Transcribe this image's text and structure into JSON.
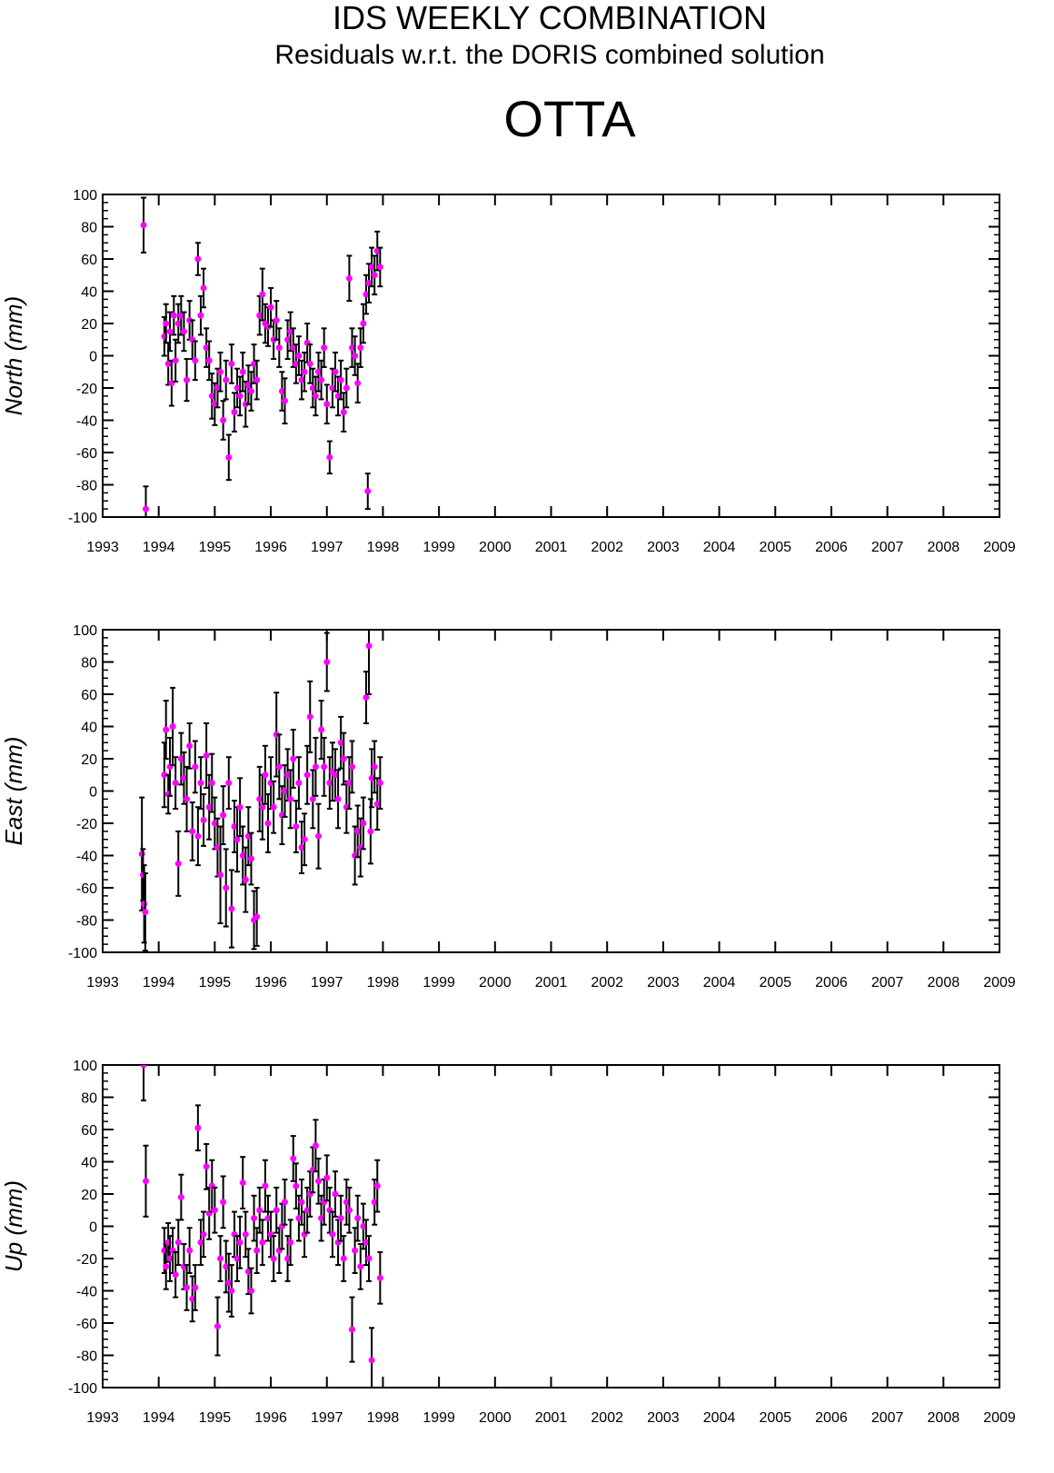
{
  "title": "IDS WEEKLY COMBINATION",
  "subtitle": "Residuals w.r.t. the DORIS combined solution",
  "station": "OTTA",
  "chart_data": [
    {
      "type": "scatter",
      "ylabel": "North (mm)",
      "color": "#ff00ff",
      "error_color": "#000000",
      "xlim": [
        1993,
        2009
      ],
      "xticks": [
        1993,
        1994,
        1995,
        1996,
        1997,
        1998,
        1999,
        2000,
        2001,
        2002,
        2003,
        2004,
        2005,
        2006,
        2007,
        2008,
        2009
      ],
      "ylim": [
        -100,
        100
      ],
      "yticks": [
        -100,
        -80,
        -60,
        -40,
        -20,
        0,
        20,
        40,
        60,
        80,
        100
      ],
      "x": [
        1993.73,
        1993.77,
        1994.1,
        1994.13,
        1994.17,
        1994.2,
        1994.23,
        1994.27,
        1994.3,
        1994.35,
        1994.4,
        1994.45,
        1994.5,
        1994.55,
        1994.6,
        1994.65,
        1994.7,
        1994.75,
        1994.8,
        1994.85,
        1994.9,
        1994.95,
        1995.0,
        1995.05,
        1995.1,
        1995.15,
        1995.2,
        1995.25,
        1995.3,
        1995.35,
        1995.4,
        1995.45,
        1995.5,
        1995.55,
        1995.6,
        1995.65,
        1995.7,
        1995.75,
        1995.8,
        1995.85,
        1995.9,
        1995.95,
        1996.0,
        1996.05,
        1996.1,
        1996.15,
        1996.2,
        1996.25,
        1996.3,
        1996.35,
        1996.4,
        1996.45,
        1996.5,
        1996.55,
        1996.6,
        1996.65,
        1996.7,
        1996.75,
        1996.8,
        1996.85,
        1996.9,
        1996.95,
        1997.0,
        1997.05,
        1997.1,
        1997.15,
        1997.2,
        1997.25,
        1997.3,
        1997.35,
        1997.4,
        1997.45,
        1997.5,
        1997.55,
        1997.6,
        1997.65,
        1997.7,
        1997.73,
        1997.75,
        1997.8,
        1997.85,
        1997.9,
        1997.95
      ],
      "values": [
        81,
        -95,
        12,
        20,
        -5,
        15,
        -17,
        25,
        -3,
        20,
        25,
        15,
        -15,
        22,
        10,
        -3,
        60,
        25,
        42,
        5,
        -3,
        -25,
        -30,
        -20,
        -10,
        -40,
        -15,
        -63,
        -5,
        -35,
        -20,
        -25,
        -10,
        -30,
        -18,
        -22,
        -5,
        -15,
        25,
        38,
        20,
        18,
        30,
        10,
        22,
        5,
        -22,
        -28,
        10,
        15,
        5,
        -5,
        0,
        -15,
        -10,
        8,
        -5,
        -20,
        -25,
        -10,
        -15,
        5,
        -30,
        -63,
        -20,
        -10,
        -25,
        -15,
        -35,
        -20,
        48,
        5,
        0,
        -17,
        5,
        20,
        38,
        -84,
        45,
        55,
        50,
        65,
        55
      ],
      "errors": [
        17,
        14,
        12,
        12,
        13,
        12,
        14,
        12,
        13,
        12,
        12,
        12,
        13,
        12,
        12,
        12,
        10,
        12,
        12,
        12,
        12,
        14,
        13,
        12,
        12,
        12,
        12,
        14,
        12,
        12,
        12,
        12,
        12,
        14,
        12,
        12,
        12,
        12,
        12,
        16,
        12,
        12,
        12,
        12,
        12,
        12,
        12,
        14,
        12,
        12,
        12,
        12,
        12,
        12,
        12,
        12,
        12,
        12,
        12,
        12,
        12,
        12,
        12,
        10,
        12,
        12,
        12,
        12,
        12,
        12,
        14,
        12,
        12,
        12,
        12,
        12,
        12,
        11,
        12,
        12,
        12,
        12,
        12
      ]
    },
    {
      "type": "scatter",
      "ylabel": "East (mm)",
      "color": "#ff00ff",
      "error_color": "#000000",
      "xlim": [
        1993,
        2009
      ],
      "xticks": [
        1993,
        1994,
        1995,
        1996,
        1997,
        1998,
        1999,
        2000,
        2001,
        2002,
        2003,
        2004,
        2005,
        2006,
        2007,
        2008,
        2009
      ],
      "ylim": [
        -100,
        100
      ],
      "yticks": [
        -100,
        -80,
        -60,
        -40,
        -20,
        0,
        20,
        40,
        60,
        80,
        100
      ],
      "x": [
        1993.7,
        1993.72,
        1993.74,
        1993.76,
        1994.1,
        1994.13,
        1994.17,
        1994.2,
        1994.25,
        1994.3,
        1994.35,
        1994.4,
        1994.45,
        1994.5,
        1994.55,
        1994.6,
        1994.65,
        1994.7,
        1994.75,
        1994.8,
        1994.85,
        1994.9,
        1994.95,
        1995.0,
        1995.05,
        1995.1,
        1995.15,
        1995.2,
        1995.25,
        1995.3,
        1995.35,
        1995.4,
        1995.45,
        1995.5,
        1995.55,
        1995.6,
        1995.65,
        1995.7,
        1995.75,
        1995.8,
        1995.85,
        1995.9,
        1995.95,
        1996.0,
        1996.05,
        1996.1,
        1996.15,
        1996.2,
        1996.25,
        1996.3,
        1996.35,
        1996.4,
        1996.45,
        1996.5,
        1996.55,
        1996.6,
        1996.65,
        1996.7,
        1996.75,
        1996.8,
        1996.85,
        1996.9,
        1996.95,
        1997.0,
        1997.05,
        1997.1,
        1997.15,
        1997.2,
        1997.25,
        1997.3,
        1997.35,
        1997.4,
        1997.45,
        1997.5,
        1997.55,
        1997.6,
        1997.65,
        1997.7,
        1997.75,
        1997.78,
        1997.8,
        1997.85,
        1997.9,
        1997.95
      ],
      "values": [
        -39,
        -52,
        -70,
        -75,
        10,
        38,
        -2,
        15,
        40,
        5,
        -45,
        20,
        8,
        -5,
        28,
        -25,
        15,
        -28,
        5,
        -18,
        22,
        -10,
        5,
        -20,
        -35,
        -52,
        -15,
        -60,
        5,
        -73,
        -22,
        -30,
        -10,
        -40,
        -55,
        -28,
        -42,
        -80,
        -78,
        -5,
        -10,
        10,
        -20,
        5,
        -10,
        35,
        15,
        -15,
        0,
        10,
        -5,
        20,
        -22,
        5,
        -35,
        -30,
        10,
        46,
        -5,
        15,
        -28,
        38,
        15,
        80,
        5,
        12,
        10,
        -5,
        30,
        20,
        -10,
        5,
        15,
        -40,
        -25,
        -35,
        -20,
        58,
        90,
        -25,
        8,
        15,
        -8,
        5
      ],
      "errors": [
        35,
        16,
        24,
        24,
        20,
        18,
        12,
        18,
        24,
        16,
        20,
        16,
        16,
        20,
        14,
        18,
        16,
        18,
        16,
        16,
        20,
        20,
        18,
        16,
        18,
        30,
        18,
        24,
        16,
        24,
        16,
        20,
        18,
        18,
        20,
        18,
        16,
        18,
        18,
        20,
        20,
        18,
        18,
        16,
        16,
        26,
        20,
        18,
        16,
        16,
        18,
        18,
        16,
        16,
        16,
        16,
        18,
        22,
        18,
        18,
        20,
        18,
        18,
        18,
        16,
        18,
        16,
        18,
        16,
        16,
        16,
        16,
        16,
        18,
        16,
        18,
        16,
        16,
        30,
        20,
        18,
        16,
        16,
        16
      ]
    },
    {
      "type": "scatter",
      "ylabel": "Up (mm)",
      "color": "#ff00ff",
      "error_color": "#000000",
      "xlim": [
        1993,
        2009
      ],
      "xticks": [
        1993,
        1994,
        1995,
        1996,
        1997,
        1998,
        1999,
        2000,
        2001,
        2002,
        2003,
        2004,
        2005,
        2006,
        2007,
        2008,
        2009
      ],
      "ylim": [
        -100,
        100
      ],
      "yticks": [
        -100,
        -80,
        -60,
        -40,
        -20,
        0,
        20,
        40,
        60,
        80,
        100
      ],
      "x": [
        1993.73,
        1993.77,
        1994.1,
        1994.13,
        1994.17,
        1994.2,
        1994.25,
        1994.3,
        1994.35,
        1994.4,
        1994.45,
        1994.5,
        1994.55,
        1994.6,
        1994.65,
        1994.7,
        1994.75,
        1994.8,
        1994.85,
        1994.9,
        1994.95,
        1995.0,
        1995.05,
        1995.1,
        1995.15,
        1995.2,
        1995.25,
        1995.3,
        1995.35,
        1995.4,
        1995.45,
        1995.5,
        1995.55,
        1995.6,
        1995.65,
        1995.7,
        1995.75,
        1995.8,
        1995.85,
        1995.9,
        1995.95,
        1996.0,
        1996.05,
        1996.1,
        1996.15,
        1996.2,
        1996.25,
        1996.3,
        1996.35,
        1996.4,
        1996.45,
        1996.5,
        1996.55,
        1996.6,
        1996.65,
        1996.7,
        1996.75,
        1996.8,
        1996.85,
        1996.9,
        1996.95,
        1997.0,
        1997.05,
        1997.1,
        1997.15,
        1997.2,
        1997.25,
        1997.3,
        1997.35,
        1997.4,
        1997.45,
        1997.5,
        1997.55,
        1997.6,
        1997.65,
        1997.7,
        1997.75,
        1997.8,
        1997.85,
        1997.9,
        1997.95
      ],
      "values": [
        100,
        28,
        -15,
        -25,
        -10,
        -20,
        -15,
        -30,
        -10,
        18,
        -25,
        -38,
        -15,
        -45,
        -38,
        61,
        -10,
        -5,
        37,
        8,
        25,
        10,
        -62,
        -20,
        15,
        -25,
        -35,
        -40,
        -5,
        -20,
        -10,
        27,
        -5,
        -28,
        -40,
        5,
        -15,
        10,
        -10,
        25,
        5,
        -5,
        -20,
        10,
        -15,
        0,
        15,
        -20,
        -10,
        42,
        25,
        5,
        15,
        -5,
        10,
        20,
        35,
        50,
        28,
        5,
        15,
        30,
        10,
        -5,
        20,
        -10,
        5,
        -20,
        15,
        10,
        -64,
        -15,
        5,
        -25,
        0,
        -10,
        -20,
        -83,
        15,
        25,
        -32
      ],
      "errors": [
        22,
        22,
        14,
        14,
        12,
        14,
        14,
        14,
        14,
        14,
        14,
        14,
        14,
        14,
        14,
        14,
        14,
        14,
        14,
        16,
        16,
        14,
        18,
        14,
        16,
        16,
        18,
        16,
        14,
        14,
        16,
        16,
        14,
        14,
        14,
        14,
        14,
        14,
        14,
        16,
        14,
        14,
        14,
        14,
        14,
        14,
        14,
        14,
        14,
        14,
        14,
        14,
        14,
        14,
        14,
        14,
        14,
        16,
        14,
        14,
        14,
        14,
        14,
        14,
        14,
        14,
        14,
        14,
        14,
        14,
        20,
        14,
        14,
        14,
        14,
        14,
        14,
        20,
        14,
        16,
        16
      ]
    }
  ]
}
